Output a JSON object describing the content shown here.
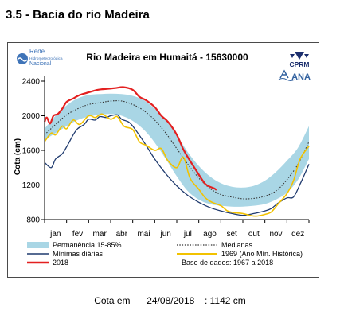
{
  "section_title": "3.5 - Bacia do rio Madeira",
  "footer": {
    "label": "Cota em",
    "date": "24/08/2018",
    "value": ": 1142 cm"
  },
  "logos": {
    "rede_line1": "Rede",
    "rede_line2": "Hidrometeorológica",
    "rede_line3": "Nacional",
    "cprm": "CPRM",
    "ana": "ANA"
  },
  "colors": {
    "band": "#a9d6e5",
    "minimas": "#1f3a6e",
    "mediana": "#333333",
    "y1969": "#f2c200",
    "y2018": "#e32020"
  },
  "chart_data": {
    "type": "line",
    "title": "Rio Madeira em Humaitá - 15630000",
    "ylabel": "Cota (cm)",
    "xlabel": "",
    "ylim": [
      800,
      2400
    ],
    "yticks": [
      800,
      1200,
      1600,
      2000,
      2400
    ],
    "ytick_labels": [
      "800",
      "1200",
      "1600",
      "2000",
      "2400"
    ],
    "months": [
      "jan",
      "fev",
      "mar",
      "abr",
      "mai",
      "jun",
      "jul",
      "ago",
      "set",
      "out",
      "nov",
      "dez"
    ],
    "xlim": [
      0,
      12
    ],
    "grid": false,
    "legend_placement": "bottom",
    "legend": {
      "band": "Permanência 15-85%",
      "mediana": "Medianas",
      "minimas": "Mínimas diárias",
      "y1969": "1969 (Ano Mín. Histórica)",
      "y2018": "2018",
      "base": "Base de dados: 1967 a 2018"
    },
    "band_upper": {
      "x": [
        0,
        0.5,
        1,
        1.5,
        2,
        2.5,
        3,
        3.5,
        4,
        4.5,
        5,
        5.5,
        6,
        6.5,
        7,
        7.5,
        8,
        8.5,
        9,
        9.5,
        10,
        10.5,
        11,
        11.5,
        12
      ],
      "y": [
        1850,
        2000,
        2120,
        2200,
        2240,
        2250,
        2255,
        2250,
        2230,
        2180,
        2080,
        1950,
        1780,
        1580,
        1420,
        1300,
        1220,
        1180,
        1170,
        1190,
        1250,
        1350,
        1480,
        1630,
        1880
      ]
    },
    "band_lower": {
      "x": [
        0,
        0.5,
        1,
        1.5,
        2,
        2.5,
        3,
        3.5,
        4,
        4.5,
        5,
        5.5,
        6,
        6.5,
        7,
        7.5,
        8,
        8.5,
        9,
        9.5,
        10,
        10.5,
        11,
        11.5,
        12
      ],
      "y": [
        1720,
        1800,
        1880,
        1950,
        1990,
        2010,
        2020,
        2000,
        1940,
        1840,
        1690,
        1500,
        1300,
        1130,
        1030,
        980,
        960,
        950,
        950,
        960,
        980,
        1030,
        1110,
        1260,
        1500
      ]
    },
    "series": [
      {
        "key": "mediana",
        "name": "Medianas",
        "x": [
          0,
          0.5,
          1,
          1.5,
          2,
          2.5,
          3,
          3.5,
          4,
          4.5,
          5,
          5.5,
          6,
          6.5,
          7,
          7.5,
          8,
          8.5,
          9,
          9.5,
          10,
          10.5,
          11,
          11.5,
          12
        ],
        "y": [
          1780,
          1900,
          2010,
          2080,
          2130,
          2150,
          2170,
          2170,
          2130,
          2060,
          1950,
          1800,
          1620,
          1440,
          1280,
          1160,
          1090,
          1060,
          1040,
          1045,
          1070,
          1130,
          1260,
          1440,
          1700
        ]
      },
      {
        "key": "minimas",
        "name": "Mínimas diárias",
        "x": [
          0,
          0.3,
          0.5,
          0.8,
          1,
          1.3,
          1.5,
          1.8,
          2,
          2.3,
          2.5,
          2.8,
          3,
          3.3,
          3.5,
          3.8,
          4,
          4.5,
          5,
          5.5,
          6,
          6.5,
          7,
          7.5,
          8,
          8.5,
          9,
          9.5,
          10,
          10.3,
          10.6,
          11,
          11.3,
          11.6,
          12
        ],
        "y": [
          1460,
          1400,
          1500,
          1560,
          1640,
          1780,
          1850,
          1900,
          1960,
          1950,
          1990,
          1980,
          2000,
          2010,
          1960,
          1930,
          1880,
          1700,
          1500,
          1330,
          1190,
          1080,
          1000,
          940,
          900,
          870,
          850,
          870,
          900,
          930,
          990,
          1050,
          1060,
          1210,
          1440
        ]
      },
      {
        "key": "y1969",
        "name": "1969 (Ano Mín. Histórica)",
        "x": [
          0,
          0.3,
          0.5,
          0.8,
          1,
          1.3,
          1.6,
          2,
          2.3,
          2.6,
          3,
          3.3,
          3.6,
          4,
          4.3,
          4.6,
          5,
          5.3,
          5.6,
          6,
          6.3,
          6.6,
          7,
          7.3,
          7.6,
          8,
          8.3,
          8.6,
          9,
          9.3,
          9.6,
          10,
          10.3,
          10.6,
          11,
          11.3,
          11.6,
          12
        ],
        "y": [
          1700,
          1800,
          1780,
          1880,
          1850,
          1950,
          1900,
          2000,
          1980,
          2020,
          1960,
          1990,
          1880,
          1840,
          1700,
          1660,
          1600,
          1620,
          1480,
          1400,
          1520,
          1280,
          1150,
          1050,
          1000,
          960,
          900,
          880,
          870,
          850,
          840,
          860,
          890,
          980,
          1100,
          1250,
          1500,
          1650
        ]
      },
      {
        "key": "y2018",
        "name": "2018",
        "x": [
          0,
          0.1,
          0.25,
          0.4,
          0.6,
          0.8,
          1,
          1.3,
          1.6,
          2,
          2.4,
          2.8,
          3.2,
          3.6,
          4,
          4.3,
          4.6,
          5,
          5.3,
          5.6,
          6,
          6.3,
          6.6,
          6.9,
          7.1,
          7.3,
          7.5,
          7.7,
          7.8
        ],
        "y": [
          1930,
          1980,
          1910,
          2000,
          2020,
          2080,
          2160,
          2200,
          2240,
          2270,
          2300,
          2310,
          2320,
          2330,
          2300,
          2220,
          2180,
          2100,
          2000,
          1930,
          1780,
          1610,
          1480,
          1360,
          1280,
          1210,
          1180,
          1160,
          1142
        ]
      }
    ]
  }
}
